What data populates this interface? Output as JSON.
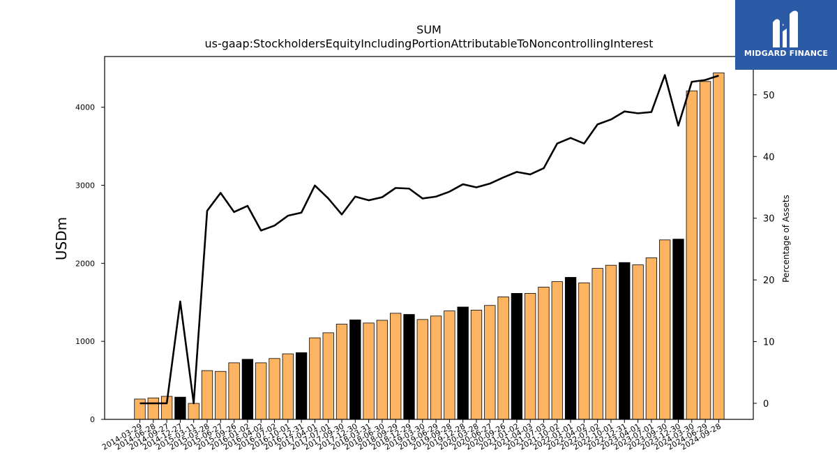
{
  "brand": {
    "name": "MIDGARD FINANCE",
    "bg_color": "#2b5aa6"
  },
  "chart_data": {
    "type": "bar",
    "title": "SUM",
    "subtitle": "us-gaap:StockholdersEquityIncludingPortionAttributableToNoncontrollingInterest",
    "ylabel": "USDm",
    "y2label": "Percentage of Assets",
    "ylim": [
      0,
      4650
    ],
    "y2lim": [
      -2.6,
      56.2
    ],
    "yticks": [
      0,
      1000,
      2000,
      3000,
      4000
    ],
    "y2ticks": [
      0,
      10,
      20,
      30,
      40,
      50
    ],
    "colors": {
      "bar": "#fdb462",
      "bar_highlight": "#000000",
      "line": "#000000"
    },
    "categories": [
      "2014-03-29",
      "2014-06-28",
      "2014-09-27",
      "2014-12-27",
      "2015-03-11",
      "2015-03-28",
      "2015-06-27",
      "2015-09-26",
      "2016-01-02",
      "2016-04-02",
      "2016-07-02",
      "2016-10-01",
      "2016-12-31",
      "2017-04-01",
      "2017-07-01",
      "2017-09-30",
      "2017-12-30",
      "2018-03-31",
      "2018-06-30",
      "2018-09-29",
      "2018-12-29",
      "2019-03-30",
      "2019-06-29",
      "2019-09-28",
      "2019-12-28",
      "2020-03-28",
      "2020-06-27",
      "2020-09-26",
      "2021-01-02",
      "2021-04-03",
      "2021-07-03",
      "2021-10-02",
      "2022-01-01",
      "2022-04-02",
      "2022-07-02",
      "2022-10-01",
      "2022-12-31",
      "2023-04-01",
      "2023-07-01",
      "2023-09-30",
      "2023-12-30",
      "2024-03-30",
      "2024-06-29",
      "2024-09-28"
    ],
    "series": [
      {
        "values": [
          260,
          275,
          295,
          285,
          205,
          625,
          615,
          725,
          770,
          725,
          780,
          840,
          855,
          1045,
          1110,
          1220,
          1275,
          1235,
          1270,
          1360,
          1345,
          1280,
          1325,
          1390,
          1440,
          1400,
          1460,
          1570,
          1615,
          1615,
          1695,
          1765,
          1820,
          1750,
          1935,
          1975,
          2010,
          1980,
          2070,
          2300,
          2310,
          4210,
          4330,
          4440
        ],
        "highlight": [
          false,
          false,
          false,
          true,
          false,
          false,
          false,
          false,
          true,
          false,
          false,
          false,
          true,
          false,
          false,
          false,
          true,
          false,
          false,
          false,
          true,
          false,
          false,
          false,
          true,
          false,
          false,
          false,
          true,
          false,
          false,
          false,
          true,
          false,
          false,
          false,
          true,
          false,
          false,
          false,
          true,
          false,
          false,
          false
        ]
      },
      {
        "values": [
          0,
          0,
          0,
          16.5,
          0,
          31.2,
          34.1,
          31.0,
          32.0,
          28.0,
          28.8,
          30.4,
          30.9,
          35.3,
          33.2,
          30.6,
          33.5,
          32.9,
          33.4,
          34.9,
          34.8,
          33.2,
          33.5,
          34.3,
          35.5,
          35.0,
          35.6,
          36.6,
          37.5,
          37.1,
          38.1,
          42.1,
          43.0,
          42.1,
          45.2,
          46.0,
          47.3,
          47.0,
          47.2,
          53.2,
          45.0,
          52.1,
          52.4,
          53.1
        ]
      }
    ]
  }
}
